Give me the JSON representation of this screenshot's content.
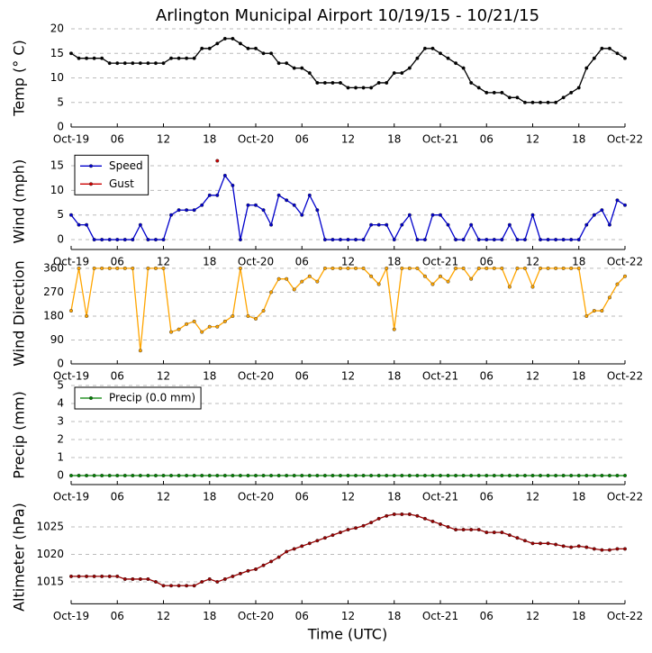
{
  "chart_data": [
    {
      "type": "line",
      "title": "Arlington Municipal Airport 10/19/15 - 10/21/15",
      "ylabel": "Temp (° C)",
      "color": "#000000",
      "x": [
        0,
        1,
        2,
        3,
        4,
        5,
        6,
        7,
        8,
        9,
        10,
        11,
        12,
        13,
        14,
        15,
        16,
        17,
        18,
        19,
        20,
        21,
        22,
        23,
        24,
        25,
        26,
        27,
        28,
        29,
        30,
        31,
        32,
        33,
        34,
        35,
        36,
        37,
        38,
        39,
        40,
        41,
        42,
        43,
        44,
        45,
        46,
        47,
        48,
        49,
        50,
        51,
        52,
        53,
        54,
        55,
        56,
        57,
        58,
        59,
        60,
        61,
        62,
        63,
        64,
        65,
        66,
        67,
        68,
        69,
        70,
        71,
        72
      ],
      "values": [
        15,
        14,
        14,
        14,
        14,
        13,
        13,
        13,
        13,
        13,
        13,
        13,
        13,
        14,
        14,
        14,
        14,
        16,
        16,
        17,
        18,
        18,
        17,
        16,
        16,
        15,
        15,
        13,
        13,
        12,
        12,
        11,
        9,
        9,
        9,
        9,
        8,
        8,
        8,
        8,
        9,
        9,
        11,
        11,
        12,
        14,
        16,
        16,
        15,
        14,
        13,
        12,
        9,
        8,
        7,
        7,
        7,
        6,
        6,
        5,
        5,
        5,
        5,
        5,
        6,
        7,
        8,
        12,
        14,
        16,
        16,
        15,
        14
      ],
      "xlim": [
        0,
        72
      ],
      "xticks": [
        {
          "value": 0,
          "label": "Oct-19"
        },
        {
          "value": 6,
          "label": "06"
        },
        {
          "value": 12,
          "label": "12"
        },
        {
          "value": 18,
          "label": "18"
        },
        {
          "value": 24,
          "label": "Oct-20"
        },
        {
          "value": 30,
          "label": "06"
        },
        {
          "value": 36,
          "label": "12"
        },
        {
          "value": 42,
          "label": "18"
        },
        {
          "value": 48,
          "label": "Oct-21"
        },
        {
          "value": 54,
          "label": "06"
        },
        {
          "value": 60,
          "label": "12"
        },
        {
          "value": 66,
          "label": "18"
        },
        {
          "value": 72,
          "label": "Oct-22"
        }
      ],
      "ylim": [
        0,
        20
      ],
      "yticks": [
        0,
        5,
        10,
        15,
        20
      ],
      "grid": true
    },
    {
      "type": "line",
      "ylabel": "Wind (mph)",
      "legend": "upper left",
      "x": [
        0,
        1,
        2,
        3,
        4,
        5,
        6,
        7,
        8,
        9,
        10,
        11,
        12,
        13,
        14,
        15,
        16,
        17,
        18,
        19,
        20,
        21,
        22,
        23,
        24,
        25,
        26,
        27,
        28,
        29,
        30,
        31,
        32,
        33,
        34,
        35,
        36,
        37,
        38,
        39,
        40,
        41,
        42,
        43,
        44,
        45,
        46,
        47,
        48,
        49,
        50,
        51,
        52,
        53,
        54,
        55,
        56,
        57,
        58,
        59,
        60,
        61,
        62,
        63,
        64,
        65,
        66,
        67,
        68,
        69,
        70,
        71,
        72
      ],
      "series": [
        {
          "name": "Speed",
          "color": "#0000cc",
          "values": [
            5,
            3,
            3,
            0,
            0,
            0,
            0,
            0,
            0,
            3,
            0,
            0,
            0,
            5,
            6,
            6,
            6,
            7,
            9,
            9,
            13,
            11,
            0,
            7,
            7,
            6,
            3,
            9,
            8,
            7,
            5,
            9,
            6,
            0,
            0,
            0,
            0,
            0,
            0,
            3,
            3,
            3,
            0,
            3,
            5,
            0,
            0,
            5,
            5,
            3,
            0,
            0,
            3,
            0,
            0,
            0,
            0,
            3,
            0,
            0,
            5,
            0,
            0,
            0,
            0,
            0,
            0,
            3,
            5,
            6,
            3,
            8,
            7
          ]
        },
        {
          "name": "Gust",
          "color": "#cc0000",
          "values": [
            null,
            null,
            null,
            null,
            null,
            null,
            null,
            null,
            null,
            null,
            null,
            null,
            null,
            null,
            null,
            null,
            null,
            null,
            null,
            16,
            null,
            null,
            null,
            null,
            null,
            null,
            null,
            null,
            null,
            null,
            null,
            null,
            null,
            null,
            null,
            null,
            null,
            null,
            null,
            null,
            null,
            null,
            null,
            null,
            null,
            null,
            null,
            null,
            null,
            null,
            null,
            null,
            null,
            null,
            null,
            null,
            null,
            null,
            null,
            null,
            null,
            null,
            null,
            null,
            null,
            null,
            null,
            null,
            null,
            null,
            null,
            null,
            null
          ]
        }
      ],
      "xlim": [
        0,
        72
      ],
      "xticks": [
        {
          "value": 0,
          "label": "Oct-19"
        },
        {
          "value": 6,
          "label": "06"
        },
        {
          "value": 12,
          "label": "12"
        },
        {
          "value": 18,
          "label": "18"
        },
        {
          "value": 24,
          "label": "Oct-20"
        },
        {
          "value": 30,
          "label": "06"
        },
        {
          "value": 36,
          "label": "12"
        },
        {
          "value": 42,
          "label": "18"
        },
        {
          "value": 48,
          "label": "Oct-21"
        },
        {
          "value": 54,
          "label": "06"
        },
        {
          "value": 60,
          "label": "12"
        },
        {
          "value": 66,
          "label": "18"
        },
        {
          "value": 72,
          "label": "Oct-22"
        }
      ],
      "ylim": [
        -2,
        17.5
      ],
      "yticks": [
        0,
        5,
        10,
        15
      ],
      "grid": true
    },
    {
      "type": "line",
      "ylabel": "Wind Direction",
      "color": "#ffa500",
      "x": [
        0,
        1,
        2,
        3,
        4,
        5,
        6,
        7,
        8,
        9,
        10,
        11,
        12,
        13,
        14,
        15,
        16,
        17,
        18,
        19,
        20,
        21,
        22,
        23,
        24,
        25,
        26,
        27,
        28,
        29,
        30,
        31,
        32,
        33,
        34,
        35,
        36,
        37,
        38,
        39,
        40,
        41,
        42,
        43,
        44,
        45,
        46,
        47,
        48,
        49,
        50,
        51,
        52,
        53,
        54,
        55,
        56,
        57,
        58,
        59,
        60,
        61,
        62,
        63,
        64,
        65,
        66,
        67,
        68,
        69,
        70,
        71,
        72
      ],
      "values": [
        200,
        360,
        180,
        360,
        360,
        360,
        360,
        360,
        360,
        50,
        360,
        360,
        360,
        120,
        130,
        150,
        160,
        120,
        140,
        140,
        160,
        180,
        360,
        180,
        170,
        200,
        270,
        320,
        320,
        280,
        310,
        330,
        310,
        360,
        360,
        360,
        360,
        360,
        360,
        330,
        300,
        360,
        130,
        360,
        360,
        360,
        330,
        300,
        330,
        310,
        360,
        360,
        320,
        360,
        360,
        360,
        360,
        290,
        360,
        360,
        290,
        360,
        360,
        360,
        360,
        360,
        360,
        180,
        200,
        200,
        250,
        300,
        330
      ],
      "xlim": [
        0,
        72
      ],
      "xticks": [
        {
          "value": 0,
          "label": "Oct-19"
        },
        {
          "value": 6,
          "label": "06"
        },
        {
          "value": 12,
          "label": "12"
        },
        {
          "value": 18,
          "label": "18"
        },
        {
          "value": 24,
          "label": "Oct-20"
        },
        {
          "value": 30,
          "label": "06"
        },
        {
          "value": 36,
          "label": "12"
        },
        {
          "value": 42,
          "label": "18"
        },
        {
          "value": 48,
          "label": "Oct-21"
        },
        {
          "value": 54,
          "label": "06"
        },
        {
          "value": 60,
          "label": "12"
        },
        {
          "value": 66,
          "label": "18"
        },
        {
          "value": 72,
          "label": "Oct-22"
        }
      ],
      "ylim": [
        0,
        380
      ],
      "yticks": [
        0,
        90,
        180,
        270,
        360
      ],
      "grid": true
    },
    {
      "type": "line",
      "ylabel": "Precip (mm)",
      "legend": "upper left",
      "x": [
        0,
        1,
        2,
        3,
        4,
        5,
        6,
        7,
        8,
        9,
        10,
        11,
        12,
        13,
        14,
        15,
        16,
        17,
        18,
        19,
        20,
        21,
        22,
        23,
        24,
        25,
        26,
        27,
        28,
        29,
        30,
        31,
        32,
        33,
        34,
        35,
        36,
        37,
        38,
        39,
        40,
        41,
        42,
        43,
        44,
        45,
        46,
        47,
        48,
        49,
        50,
        51,
        52,
        53,
        54,
        55,
        56,
        57,
        58,
        59,
        60,
        61,
        62,
        63,
        64,
        65,
        66,
        67,
        68,
        69,
        70,
        71,
        72
      ],
      "series": [
        {
          "name": "Precip (0.0 mm)",
          "color": "#008000",
          "values": [
            0,
            0,
            0,
            0,
            0,
            0,
            0,
            0,
            0,
            0,
            0,
            0,
            0,
            0,
            0,
            0,
            0,
            0,
            0,
            0,
            0,
            0,
            0,
            0,
            0,
            0,
            0,
            0,
            0,
            0,
            0,
            0,
            0,
            0,
            0,
            0,
            0,
            0,
            0,
            0,
            0,
            0,
            0,
            0,
            0,
            0,
            0,
            0,
            0,
            0,
            0,
            0,
            0,
            0,
            0,
            0,
            0,
            0,
            0,
            0,
            0,
            0,
            0,
            0,
            0,
            0,
            0,
            0,
            0,
            0,
            0,
            0,
            0
          ]
        }
      ],
      "xlim": [
        0,
        72
      ],
      "xticks": [
        {
          "value": 0,
          "label": "Oct-19"
        },
        {
          "value": 6,
          "label": "06"
        },
        {
          "value": 12,
          "label": "12"
        },
        {
          "value": 18,
          "label": "18"
        },
        {
          "value": 24,
          "label": "Oct-20"
        },
        {
          "value": 30,
          "label": "06"
        },
        {
          "value": 36,
          "label": "12"
        },
        {
          "value": 42,
          "label": "18"
        },
        {
          "value": 48,
          "label": "Oct-21"
        },
        {
          "value": 54,
          "label": "06"
        },
        {
          "value": 60,
          "label": "12"
        },
        {
          "value": 66,
          "label": "18"
        },
        {
          "value": 72,
          "label": "Oct-22"
        }
      ],
      "ylim": [
        -0.5,
        5
      ],
      "yticks": [
        0,
        1,
        2,
        3,
        4,
        5
      ],
      "grid": true
    },
    {
      "type": "line",
      "ylabel": "Altimeter (hPa)",
      "xlabel": "Time (UTC)",
      "color": "#990000",
      "x": [
        0,
        1,
        2,
        3,
        4,
        5,
        6,
        7,
        8,
        9,
        10,
        11,
        12,
        13,
        14,
        15,
        16,
        17,
        18,
        19,
        20,
        21,
        22,
        23,
        24,
        25,
        26,
        27,
        28,
        29,
        30,
        31,
        32,
        33,
        34,
        35,
        36,
        37,
        38,
        39,
        40,
        41,
        42,
        43,
        44,
        45,
        46,
        47,
        48,
        49,
        50,
        51,
        52,
        53,
        54,
        55,
        56,
        57,
        58,
        59,
        60,
        61,
        62,
        63,
        64,
        65,
        66,
        67,
        68,
        69,
        70,
        71,
        72
      ],
      "values": [
        1016,
        1016,
        1016,
        1016,
        1016,
        1016,
        1016,
        1015.5,
        1015.5,
        1015.5,
        1015.5,
        1015,
        1014.3,
        1014.3,
        1014.3,
        1014.3,
        1014.3,
        1015,
        1015.5,
        1015,
        1015.5,
        1016,
        1016.5,
        1017,
        1017.3,
        1018,
        1018.7,
        1019.5,
        1020.5,
        1021,
        1021.5,
        1022,
        1022.5,
        1023,
        1023.5,
        1024,
        1024.5,
        1024.8,
        1025.2,
        1025.8,
        1026.5,
        1027,
        1027.3,
        1027.3,
        1027.3,
        1027,
        1026.5,
        1026,
        1025.5,
        1025,
        1024.5,
        1024.5,
        1024.5,
        1024.5,
        1024,
        1024,
        1024,
        1023.5,
        1023,
        1022.5,
        1022,
        1022,
        1022,
        1021.8,
        1021.5,
        1021.3,
        1021.5,
        1021.3,
        1021,
        1020.8,
        1020.8,
        1021,
        1021
      ],
      "xlim": [
        0,
        72
      ],
      "xticks": [
        {
          "value": 0,
          "label": "Oct-19"
        },
        {
          "value": 6,
          "label": "06"
        },
        {
          "value": 12,
          "label": "12"
        },
        {
          "value": 18,
          "label": "18"
        },
        {
          "value": 24,
          "label": "Oct-20"
        },
        {
          "value": 30,
          "label": "06"
        },
        {
          "value": 36,
          "label": "12"
        },
        {
          "value": 42,
          "label": "18"
        },
        {
          "value": 48,
          "label": "Oct-21"
        },
        {
          "value": 54,
          "label": "06"
        },
        {
          "value": 60,
          "label": "12"
        },
        {
          "value": 66,
          "label": "18"
        },
        {
          "value": 72,
          "label": "Oct-22"
        }
      ],
      "ylim": [
        1011,
        1028
      ],
      "yticks": [
        1015,
        1020,
        1025
      ],
      "grid": true
    }
  ]
}
